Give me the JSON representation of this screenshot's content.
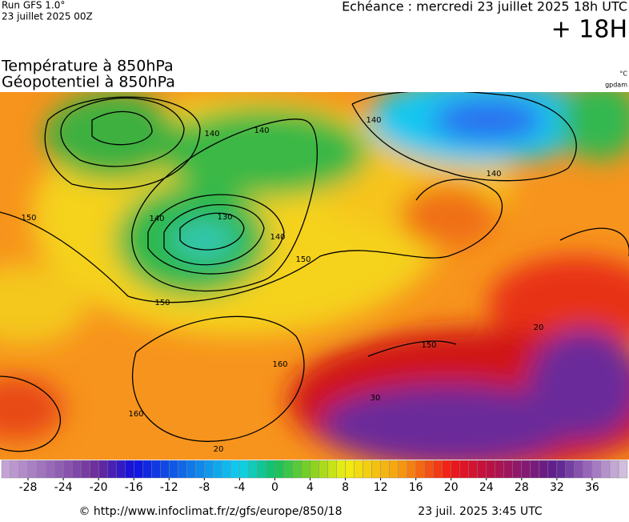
{
  "header": {
    "run": "Run GFS 1.0°",
    "date": "23 juillet 2025 00Z",
    "forecast": "Echéance : mercredi 23 juillet 2025 18h UTC",
    "lead": "+ 18H"
  },
  "titles": {
    "temperature": "Température à 850hPa",
    "geopotential": "Géopotentiel à 850hPa"
  },
  "units": {
    "temperature": "°C",
    "geopotential": "gpdam"
  },
  "map": {
    "contour_labels": [
      "140",
      "140",
      "140",
      "140",
      "140",
      "140",
      "130",
      "150",
      "150",
      "150",
      "150",
      "160",
      "160",
      "20",
      "20",
      "30"
    ]
  },
  "colorbar": {
    "lim": [
      -31,
      40
    ],
    "ticks": [
      -28,
      -24,
      -20,
      -16,
      -12,
      -8,
      -4,
      0,
      4,
      8,
      12,
      16,
      20,
      24,
      28,
      32,
      36
    ],
    "stops": [
      {
        "value": -31,
        "color": "#c8a8d8"
      },
      {
        "value": -20,
        "color": "#6a2a9a"
      },
      {
        "value": -16,
        "color": "#1010e0"
      },
      {
        "value": -4,
        "color": "#10d0f0"
      },
      {
        "value": 0,
        "color": "#10c060"
      },
      {
        "value": 4,
        "color": "#80d020"
      },
      {
        "value": 8,
        "color": "#f0f010"
      },
      {
        "value": 14,
        "color": "#f8a010"
      },
      {
        "value": 20,
        "color": "#f01818"
      },
      {
        "value": 24,
        "color": "#c01040"
      },
      {
        "value": 28,
        "color": "#8a1870"
      },
      {
        "value": 32,
        "color": "#5a2090"
      },
      {
        "value": 36,
        "color": "#a070c0"
      },
      {
        "value": 40,
        "color": "#d8c8e0"
      }
    ]
  },
  "footer": {
    "url": "© http://www.infoclimat.fr/z/gfs/europe/850/18",
    "generated": "23 juil. 2025  3:45 UTC"
  }
}
